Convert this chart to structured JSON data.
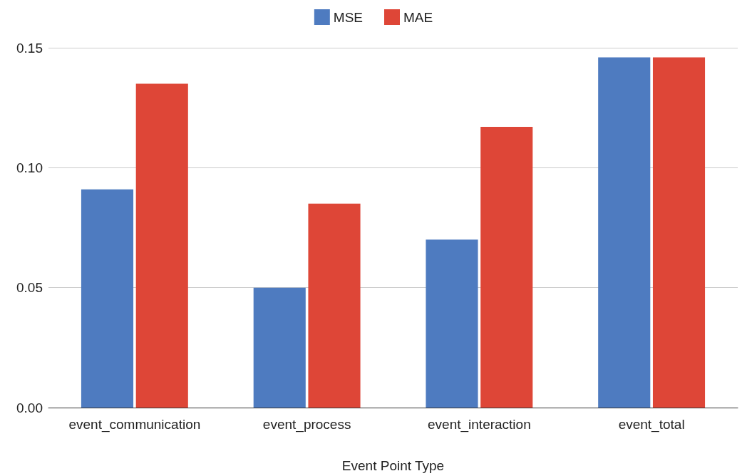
{
  "chart_data": {
    "type": "bar",
    "xlabel": "Event Point Type",
    "categories": [
      "event_communication",
      "event_process",
      "event_interaction",
      "event_total"
    ],
    "series": [
      {
        "name": "MSE",
        "color": "#4e7bc0",
        "values": [
          0.091,
          0.05,
          0.07,
          0.146
        ]
      },
      {
        "name": "MAE",
        "color": "#de4637",
        "values": [
          0.135,
          0.085,
          0.117,
          0.146
        ]
      }
    ],
    "ylim": [
      0,
      0.15
    ],
    "yticks": [
      {
        "value": 0,
        "label": "0.00"
      },
      {
        "value": 0.05,
        "label": "0.05"
      },
      {
        "value": 0.1,
        "label": "0.10"
      },
      {
        "value": 0.15,
        "label": "0.15"
      }
    ],
    "grid": "y",
    "legend": "top"
  }
}
